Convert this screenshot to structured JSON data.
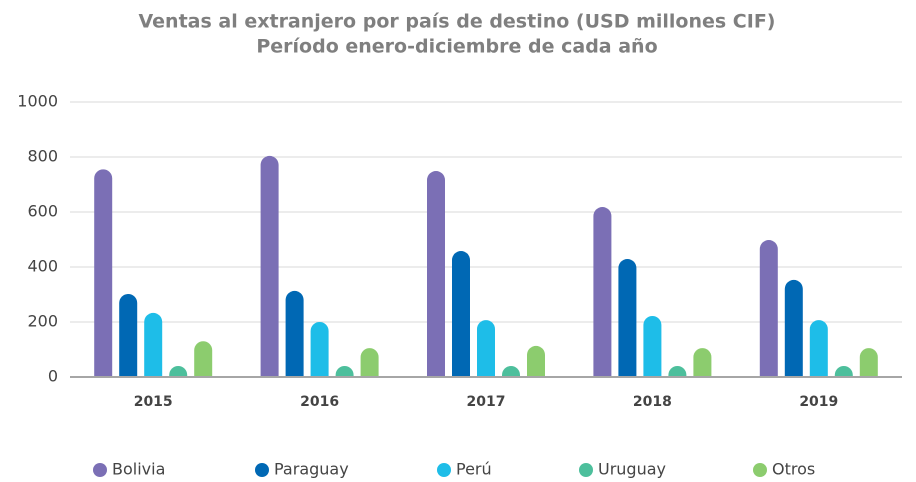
{
  "chart_data": {
    "type": "bar",
    "title": "Ventas al extranjero por país de destino (USD millones CIF)",
    "subtitle": "Período enero-diciembre de cada año",
    "categories": [
      "2015",
      "2016",
      "2017",
      "2018",
      "2019"
    ],
    "series": [
      {
        "name": "Bolivia",
        "color": "#7b6fb5",
        "values": [
          755,
          804,
          749,
          618,
          498
        ]
      },
      {
        "name": "Paraguay",
        "color": "#0068b4",
        "values": [
          302,
          313,
          458,
          429,
          353
        ]
      },
      {
        "name": "Perú",
        "color": "#1ebde8",
        "values": [
          233,
          200,
          207,
          222,
          207
        ]
      },
      {
        "name": "Uruguay",
        "color": "#4dbf9c",
        "values": [
          40,
          40,
          40,
          40,
          40
        ]
      },
      {
        "name": "Otros",
        "color": "#8ccc6e",
        "values": [
          130,
          105,
          113,
          105,
          105
        ]
      }
    ],
    "ylim": [
      0,
      1000
    ],
    "yticks": [
      0,
      200,
      400,
      600,
      800,
      1000
    ],
    "grid": true
  }
}
